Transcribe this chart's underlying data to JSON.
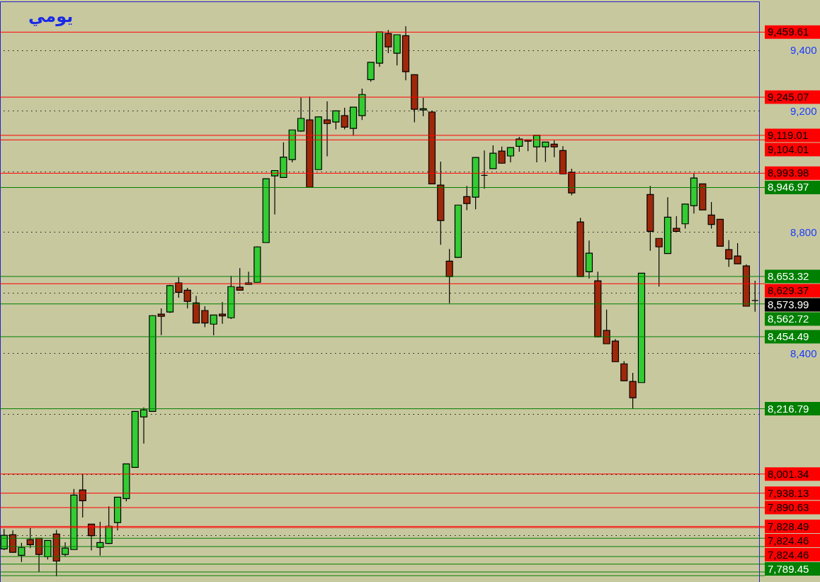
{
  "chart_data": {
    "type": "candlestick",
    "title": "يومي",
    "categories": [
      null,
      null,
      null,
      null,
      null,
      null,
      null,
      null,
      null,
      null,
      null,
      null,
      null,
      null,
      null,
      null,
      null,
      null,
      null,
      null,
      null,
      null,
      null,
      null,
      null,
      null,
      null,
      null,
      null,
      null,
      null,
      null,
      null,
      null,
      null,
      null,
      null,
      null,
      null,
      null,
      null,
      null,
      null,
      null,
      null,
      null,
      null,
      null,
      null,
      null,
      null,
      null,
      null,
      null,
      null,
      null,
      null,
      null,
      null,
      null,
      null,
      null,
      null,
      null,
      null,
      null,
      null,
      null,
      null,
      null,
      null,
      null,
      null,
      null,
      null,
      null,
      null,
      null,
      null,
      null,
      null,
      null,
      null,
      null,
      null,
      null,
      null
    ],
    "ohlc": [
      [
        7754,
        7820,
        7750,
        7799
      ],
      [
        7801,
        7815,
        7742,
        7743
      ],
      [
        7733,
        7774,
        7711,
        7759
      ],
      [
        7785,
        7823,
        7757,
        7768
      ],
      [
        7789,
        7789,
        7678,
        7736
      ],
      [
        7728,
        7782,
        7719,
        7782
      ],
      [
        7803,
        7817,
        7664,
        7714
      ],
      [
        7736,
        7776,
        7729,
        7757
      ],
      [
        7752,
        7952,
        7752,
        7932
      ],
      [
        7949,
        8002,
        7858,
        7913
      ],
      [
        7836,
        7836,
        7749,
        7798
      ],
      [
        7759,
        7844,
        7732,
        7775
      ],
      [
        7772,
        7895,
        7770,
        7829
      ],
      [
        7841,
        7925,
        7815,
        7925
      ],
      [
        7920,
        8035,
        7911,
        8035
      ],
      [
        8023,
        8208,
        8022,
        8208
      ],
      [
        8190,
        8221,
        8102,
        8213
      ],
      [
        8208,
        8525,
        8207,
        8524
      ],
      [
        8529,
        8548,
        8460,
        8522
      ],
      [
        8536,
        8626,
        8533,
        8623
      ],
      [
        8632,
        8651,
        8583,
        8601
      ],
      [
        8608,
        8616,
        8548,
        8571
      ],
      [
        8566,
        8589,
        8500,
        8500
      ],
      [
        8541,
        8555,
        8486,
        8500
      ],
      [
        8496,
        8526,
        8459,
        8526
      ],
      [
        8529,
        8569,
        8497,
        8523
      ],
      [
        8517,
        8655,
        8513,
        8620
      ],
      [
        8618,
        8681,
        8608,
        8608
      ],
      [
        8627,
        8669,
        8627,
        8632
      ],
      [
        8634,
        8753,
        8634,
        8751
      ],
      [
        8765,
        8976,
        8765,
        8976
      ],
      [
        8985,
        9003,
        8858,
        9003
      ],
      [
        8980,
        9096,
        8980,
        9047
      ],
      [
        9039,
        9137,
        9030,
        9137
      ],
      [
        9133,
        9244,
        9131,
        9175
      ],
      [
        9170,
        9247,
        8947,
        8947
      ],
      [
        9006,
        9180,
        9006,
        9180
      ],
      [
        9170,
        9231,
        9050,
        9158
      ],
      [
        9163,
        9200,
        9139,
        9200
      ],
      [
        9184,
        9210,
        9139,
        9146
      ],
      [
        9142,
        9212,
        9118,
        9212
      ],
      [
        9184,
        9273,
        9170,
        9254
      ],
      [
        9303,
        9360,
        9296,
        9360
      ],
      [
        9357,
        9460,
        9345,
        9460
      ],
      [
        9455,
        9467,
        9390,
        9411
      ],
      [
        9390,
        9451,
        9350,
        9451
      ],
      [
        9448,
        9479,
        9301,
        9329
      ],
      [
        9319,
        9319,
        9162,
        9205
      ],
      [
        9203,
        9243,
        9182,
        9207
      ],
      [
        9196,
        9201,
        8959,
        8959
      ],
      [
        8955,
        9032,
        8758,
        8838
      ],
      [
        8704,
        8744,
        8565,
        8653
      ],
      [
        8716,
        8889,
        8716,
        8889
      ],
      [
        8917,
        8952,
        8872,
        8894
      ],
      [
        8915,
        9046,
        8875,
        9046
      ],
      [
        8987,
        9069,
        8943,
        8987
      ],
      [
        9009,
        9086,
        9009,
        9060
      ],
      [
        9067,
        9082,
        9027,
        9027
      ],
      [
        9051,
        9079,
        9030,
        9079
      ],
      [
        9083,
        9114,
        9065,
        9107
      ],
      [
        9104,
        9104,
        9067,
        9100
      ],
      [
        9081,
        9119,
        9030,
        9119
      ],
      [
        9081,
        9097,
        9031,
        9097
      ],
      [
        9090,
        9102,
        9047,
        9081
      ],
      [
        9069,
        9083,
        8992,
        8992
      ],
      [
        8997,
        9009,
        8921,
        8929
      ],
      [
        8833,
        8847,
        8653,
        8653
      ],
      [
        8669,
        8772,
        8646,
        8730
      ],
      [
        8639,
        8669,
        8454,
        8454
      ],
      [
        8475,
        8544,
        8431,
        8431
      ],
      [
        8440,
        8447,
        8372,
        8372
      ],
      [
        8365,
        8374,
        8309,
        8309
      ],
      [
        8307,
        8335,
        8218,
        8253
      ],
      [
        8303,
        8664,
        8303,
        8664
      ],
      [
        8924,
        8952,
        8738,
        8802
      ],
      [
        8779,
        8779,
        8620,
        8751
      ],
      [
        8729,
        8915,
        8729,
        8849
      ],
      [
        8812,
        8852,
        8802,
        8802
      ],
      [
        8827,
        8892,
        8811,
        8892
      ],
      [
        8887,
        8994,
        8861,
        8978
      ],
      [
        8959,
        8959,
        8873,
        8873
      ],
      [
        8856,
        8899,
        8811,
        8825
      ],
      [
        8842,
        8842,
        8753,
        8753
      ],
      [
        8742,
        8773,
        8685,
        8711
      ],
      [
        8721,
        8763,
        8695,
        8695
      ],
      [
        8688,
        8693,
        8555,
        8555
      ],
      [
        8574,
        8639,
        8537,
        8574
      ]
    ],
    "colors": [
      "#33cc33",
      "#a0280a",
      "#33cc33",
      "#a0280a",
      "#a0280a",
      "#33cc33",
      "#a0280a",
      "#33cc33",
      "#33cc33",
      "#a0280a",
      "#a0280a",
      "#33cc33",
      "#33cc33",
      "#33cc33",
      "#33cc33",
      "#33cc33",
      "#33cc33",
      "#33cc33",
      "#a0280a",
      "#33cc33",
      "#a0280a",
      "#a0280a",
      "#a0280a",
      "#a0280a",
      "#33cc33",
      "#a0280a",
      "#33cc33",
      "#a0280a",
      "#33cc33",
      "#33cc33",
      "#33cc33",
      "#33cc33",
      "#33cc33",
      "#33cc33",
      "#33cc33",
      "#a0280a",
      "#33cc33",
      "#a0280a",
      "#33cc33",
      "#a0280a",
      "#33cc33",
      "#33cc33",
      "#33cc33",
      "#33cc33",
      "#a0280a",
      "#33cc33",
      "#a0280a",
      "#a0280a",
      "#33cc33",
      "#a0280a",
      "#a0280a",
      "#a0280a",
      "#33cc33",
      "#a0280a",
      "#33cc33",
      "#000000",
      "#33cc33",
      "#a0280a",
      "#33cc33",
      "#33cc33",
      "#a0280a",
      "#33cc33",
      "#33cc33",
      "#a0280a",
      "#a0280a",
      "#a0280a",
      "#a0280a",
      "#33cc33",
      "#a0280a",
      "#a0280a",
      "#a0280a",
      "#a0280a",
      "#a0280a",
      "#33cc33",
      "#a0280a",
      "#a0280a",
      "#33cc33",
      "#a0280a",
      "#33cc33",
      "#33cc33",
      "#a0280a",
      "#a0280a",
      "#a0280a",
      "#a0280a",
      "#a0280a",
      "#a0280a",
      "#000000"
    ],
    "ylim": [
      7645,
      9561
    ],
    "yticks": [
      {
        "value": 7800,
        "label": null
      },
      {
        "value": 8000,
        "label": null
      },
      {
        "value": 8200,
        "label": null
      },
      {
        "value": 8400,
        "label": "8,400"
      },
      {
        "value": 8600,
        "label": null
      },
      {
        "value": 8800,
        "label": "8,800"
      },
      {
        "value": 9000,
        "label": null
      },
      {
        "value": 9200,
        "label": "9,200"
      },
      {
        "value": 9400,
        "label": "9,400"
      }
    ],
    "tick_labels": "y",
    "grid": "y",
    "ref_lines": [
      {
        "axis": "y",
        "value": 9459.61,
        "label": "9,459.61",
        "color": "#ff0000"
      },
      {
        "axis": "y",
        "value": 9245.07,
        "label": "9,245.07",
        "color": "#ff0000"
      },
      {
        "axis": "y",
        "value": 9119.01,
        "label": "9,119.01",
        "color": "#ff0000"
      },
      {
        "axis": "y",
        "value": 9104.01,
        "label": "9,104.01",
        "color": "#ff0000"
      },
      {
        "axis": "y",
        "value": 8993.98,
        "label": "8,993.98",
        "color": "#ff0000"
      },
      {
        "axis": "y",
        "value": 8946.97,
        "label": "8,946.97",
        "color": "#008000"
      },
      {
        "axis": "y",
        "value": 8653.32,
        "label": "8,653.32",
        "color": "#008000"
      },
      {
        "axis": "y",
        "value": 8629.37,
        "label": "8,629.37",
        "color": "#ff0000"
      },
      {
        "axis": "y",
        "value": 8562.72,
        "label": "8,562.72",
        "color": "#008000"
      },
      {
        "axis": "y",
        "value": 8454.49,
        "label": "8,454.49",
        "color": "#008000"
      },
      {
        "axis": "y",
        "value": 8216.79,
        "label": "8,216.79",
        "color": "#008000"
      },
      {
        "axis": "y",
        "value": 8001.34,
        "label": "8,001.34",
        "color": "#ff0000"
      },
      {
        "axis": "y",
        "value": 7938.13,
        "label": "7,938.13",
        "color": "#ff0000"
      },
      {
        "axis": "y",
        "value": 7890.63,
        "label": "7,890.63",
        "color": "#ff0000"
      },
      {
        "axis": "y",
        "value": 7828.49,
        "label": "7,828.49",
        "color": "#ff0000"
      },
      {
        "axis": "y",
        "value": 7824.46,
        "label": "7,824.46",
        "color": "#ff0000"
      },
      {
        "axis": "y",
        "value": 7789.45,
        "label": "7,789.45",
        "color": "#008000"
      },
      {
        "axis": "y",
        "value": 7762,
        "color": "#008000"
      },
      {
        "axis": "y",
        "value": 7729,
        "color": "#008000"
      },
      {
        "axis": "y",
        "value": 7704,
        "color": "#008000"
      },
      {
        "axis": "y",
        "value": 7678,
        "color": "#008000"
      },
      {
        "axis": "y",
        "value": 7666,
        "color": "#008000"
      }
    ],
    "annotations": [
      "8,573.99",
      "7,824.46"
    ]
  }
}
